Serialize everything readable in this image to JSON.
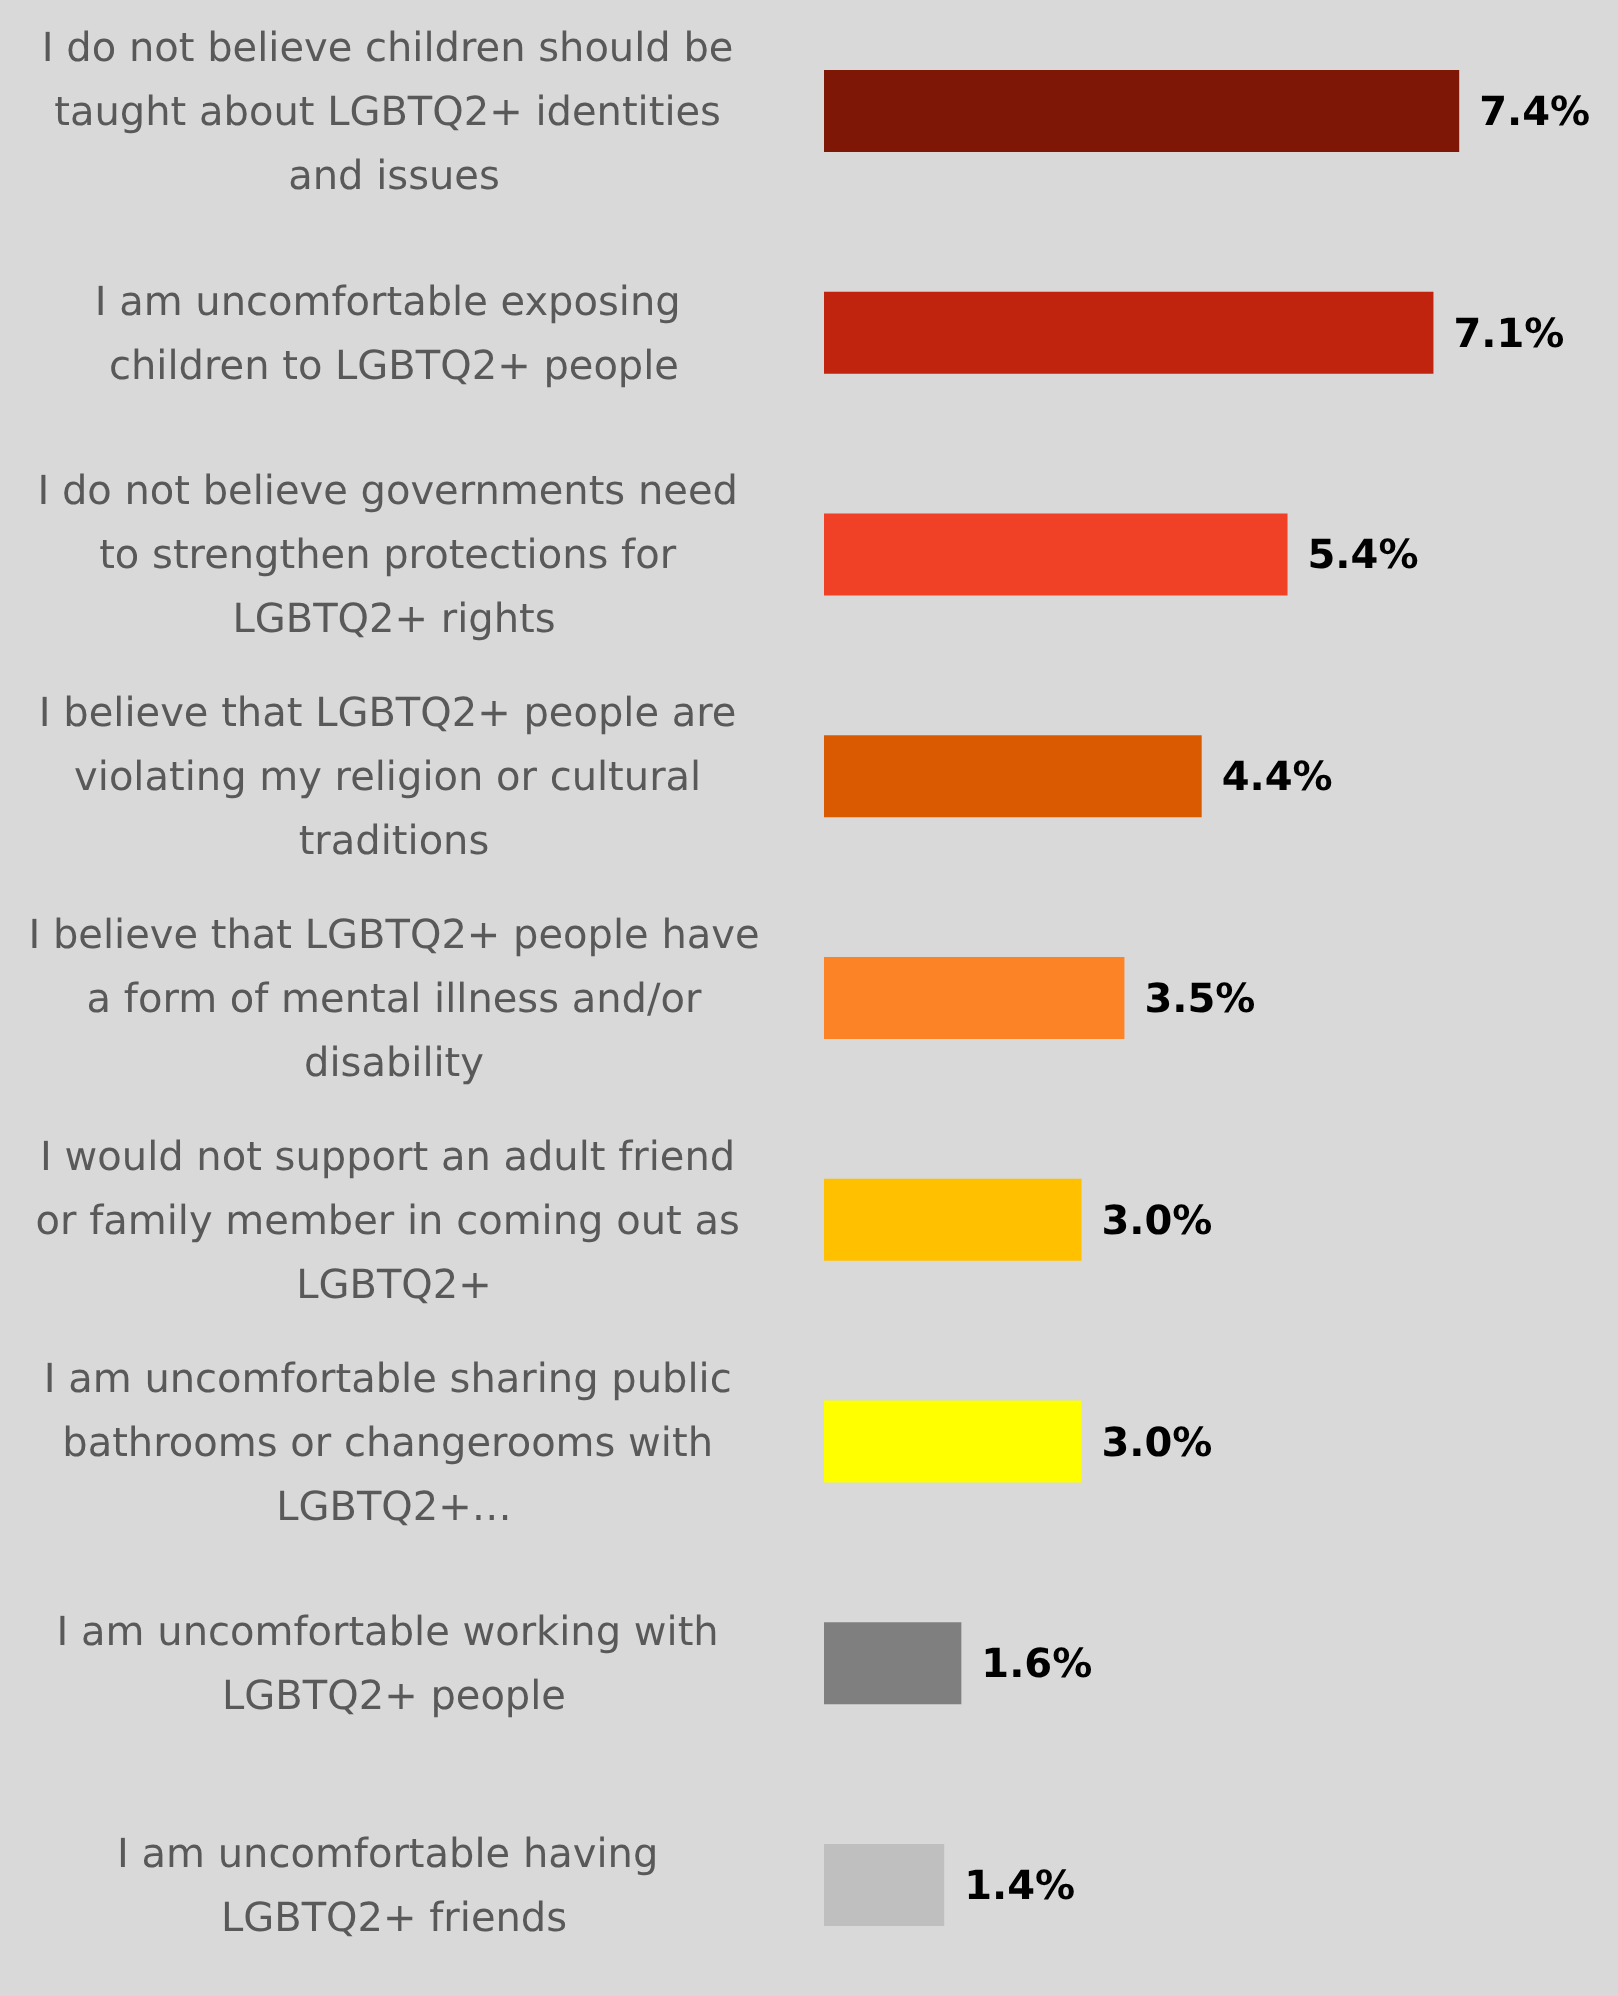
{
  "chart_data": {
    "type": "bar",
    "orientation": "horizontal",
    "categories": [
      "I do not believe children should be taught about LGBTQ2+ identities and issues",
      "I am uncomfortable exposing children to LGBTQ2+ people",
      "I do not believe governments need to strengthen protections for LGBTQ2+ rights",
      "I believe that LGBTQ2+ people are violating my religion or cultural traditions",
      "I believe that LGBTQ2+ people have a form of mental illness and/or disability",
      "I would not support an adult friend or family member in coming out as LGBTQ2+",
      "I am uncomfortable sharing public bathrooms or changerooms with LGBTQ2+…",
      "I am uncomfortable working with LGBTQ2+ people",
      "I am uncomfortable having LGBTQ2+ friends"
    ],
    "values": [
      7.4,
      7.1,
      5.4,
      4.4,
      3.5,
      3.0,
      3.0,
      1.6,
      1.4
    ],
    "value_labels": [
      "7.4%",
      "7.1%",
      "5.4%",
      "4.4%",
      "3.5%",
      "3.0%",
      "3.0%",
      "1.6%",
      "1.4%"
    ],
    "colors": [
      "#7f1706",
      "#c0230e",
      "#f04026",
      "#d95a00",
      "#fd8426",
      "#ffc000",
      "#ffff00",
      "#7f7f7f",
      "#bfbfbf"
    ]
  }
}
